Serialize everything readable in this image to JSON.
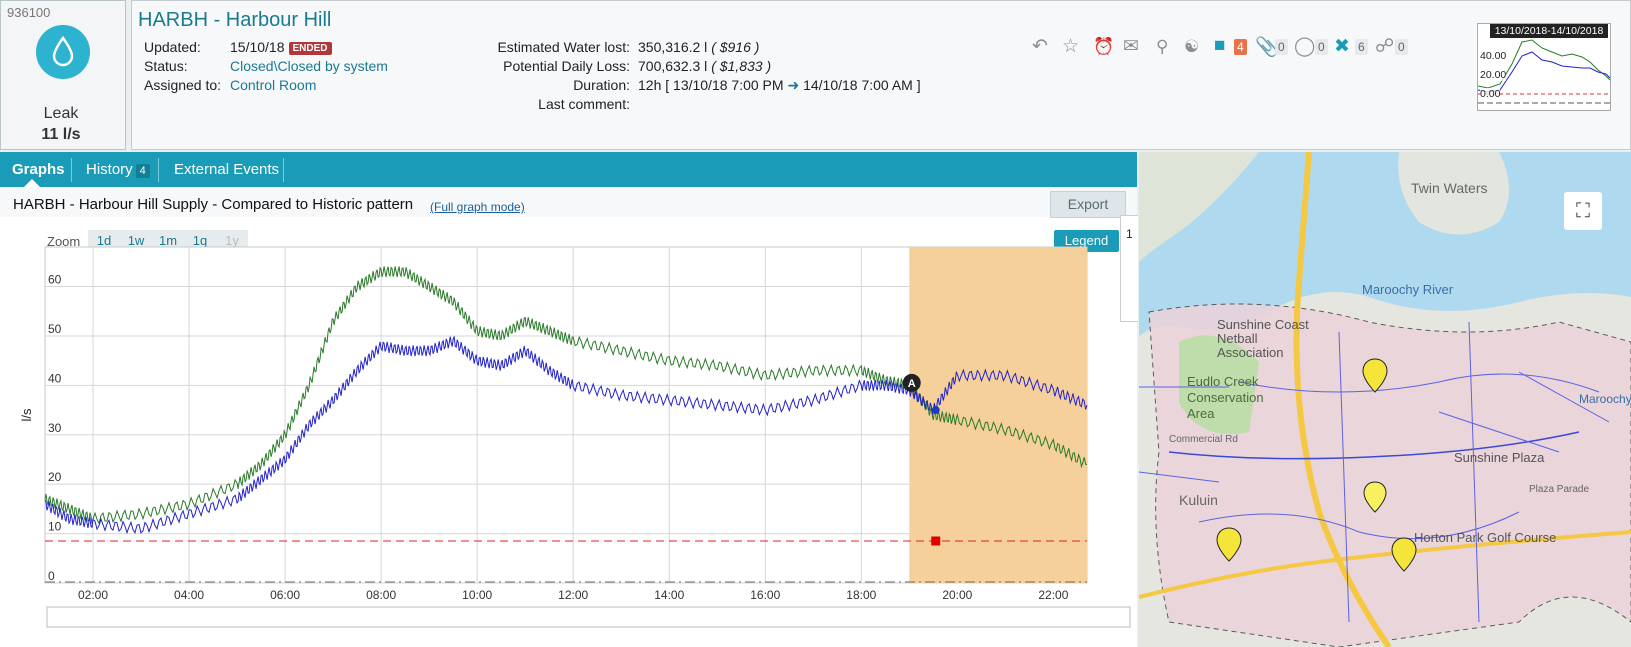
{
  "event": {
    "id": "936100",
    "type": "Leak",
    "rate": "11 l/s"
  },
  "header": {
    "title": "HARBH - Harbour Hill",
    "updated_label": "Updated:",
    "updated_value": "15/10/18",
    "ended_badge": "ENDED",
    "status_label": "Status:",
    "status_value": "Closed\\Closed by system",
    "assigned_label": "Assigned to:",
    "assigned_value": "Control Room",
    "water_lost_label": "Estimated Water lost:",
    "water_lost_value": "350,316.2 l",
    "water_lost_cost": "( $916 )",
    "daily_loss_label": "Potential Daily Loss:",
    "daily_loss_value": "700,632.3 l",
    "daily_loss_cost": "( $1,833 )",
    "duration_label": "Duration:",
    "duration_value": "12h [ 13/10/18 7:00 PM",
    "duration_end": "14/10/18 7:00 AM ]",
    "last_comment_label": "Last comment:",
    "toolbar": {
      "comments_count": "4",
      "attachments_count": "0",
      "tags_count": "0",
      "work_orders_count": "6",
      "links_count": "0"
    },
    "mini_chart": {
      "title": "13/10/2018-14/10/2018",
      "y_ticks": [
        "40.00",
        "20.00",
        "0.00"
      ]
    }
  },
  "tabs": {
    "graphs": "Graphs",
    "history": "History",
    "history_count": "4",
    "external": "External Events"
  },
  "graph": {
    "title": "HARBH - Harbour Hill Supply - Compared to Historic pattern",
    "full_mode_link": "(Full graph mode)",
    "export_label": "Export",
    "legend_label": "Legend",
    "legend_peek": "1",
    "zoom_label": "Zoom",
    "zoom_options": [
      "1d",
      "1w",
      "1m",
      "1q",
      "1y"
    ],
    "marker_label": "A"
  },
  "chart_data": {
    "type": "line",
    "ylabel": "l/s",
    "ylim": [
      0,
      68
    ],
    "xlim": [
      1.0,
      22.7
    ],
    "x_unit": "hour of day",
    "x_ticks": [
      "02:00",
      "04:00",
      "06:00",
      "08:00",
      "10:00",
      "12:00",
      "14:00",
      "16:00",
      "18:00",
      "20:00",
      "22:00"
    ],
    "x_tick_values": [
      2,
      4,
      6,
      8,
      10,
      12,
      14,
      16,
      18,
      20,
      22
    ],
    "y_ticks": [
      0,
      10,
      20,
      30,
      40,
      50,
      60
    ],
    "threshold": 8.5,
    "highlight_range": [
      19.0,
      22.7
    ],
    "series": [
      {
        "color": "#2b7a2b",
        "x": [
          1.0,
          1.5,
          2.0,
          3.0,
          4.0,
          5.0,
          5.5,
          6.0,
          6.5,
          7.0,
          7.5,
          8.0,
          8.5,
          9.0,
          9.5,
          10.0,
          10.5,
          11.0,
          11.5,
          12.0,
          13.0,
          14.0,
          15.0,
          16.0,
          17.0,
          18.0,
          18.5,
          19.0,
          19.5,
          20.0,
          21.0,
          22.0,
          22.7
        ],
        "values": [
          17,
          15,
          13,
          14,
          16,
          20,
          24,
          30,
          40,
          53,
          60,
          63,
          63,
          60,
          57,
          51,
          50,
          53,
          51,
          49,
          47,
          45,
          44,
          42,
          43,
          43,
          41,
          40,
          34,
          33,
          31,
          28,
          24
        ]
      },
      {
        "color": "#2222cc",
        "x": [
          1.0,
          1.5,
          2.0,
          3.0,
          4.0,
          5.0,
          5.5,
          6.0,
          6.5,
          7.0,
          7.5,
          8.0,
          8.5,
          9.0,
          9.5,
          10.0,
          10.5,
          11.0,
          11.5,
          12.0,
          13.0,
          14.0,
          15.0,
          16.0,
          17.0,
          18.0,
          18.5,
          19.0,
          19.5,
          20.0,
          21.0,
          22.0,
          22.7
        ],
        "values": [
          16,
          13,
          12,
          11,
          14,
          17,
          21,
          25,
          32,
          37,
          43,
          48,
          47,
          47,
          49,
          45,
          44,
          47,
          43,
          40,
          38,
          37,
          36,
          35,
          37,
          40,
          40,
          39,
          35,
          42,
          42,
          39,
          36
        ]
      }
    ],
    "grid": true
  },
  "map": {
    "labels": {
      "twin_waters": "Twin Waters",
      "maroochy_river": "Maroochy River",
      "netball": "Sunshine Coast Netball Association",
      "eudlo": "Eudlo Creek Conservation Area",
      "kuluin": "Kuluin",
      "sunshine_plaza": "Sunshine Plaza",
      "horton": "Horton Park Golf Course",
      "commercial_rd": "Commercial Rd",
      "plaza_parade": "Plaza Parade",
      "maroochy": "Maroochy"
    }
  }
}
